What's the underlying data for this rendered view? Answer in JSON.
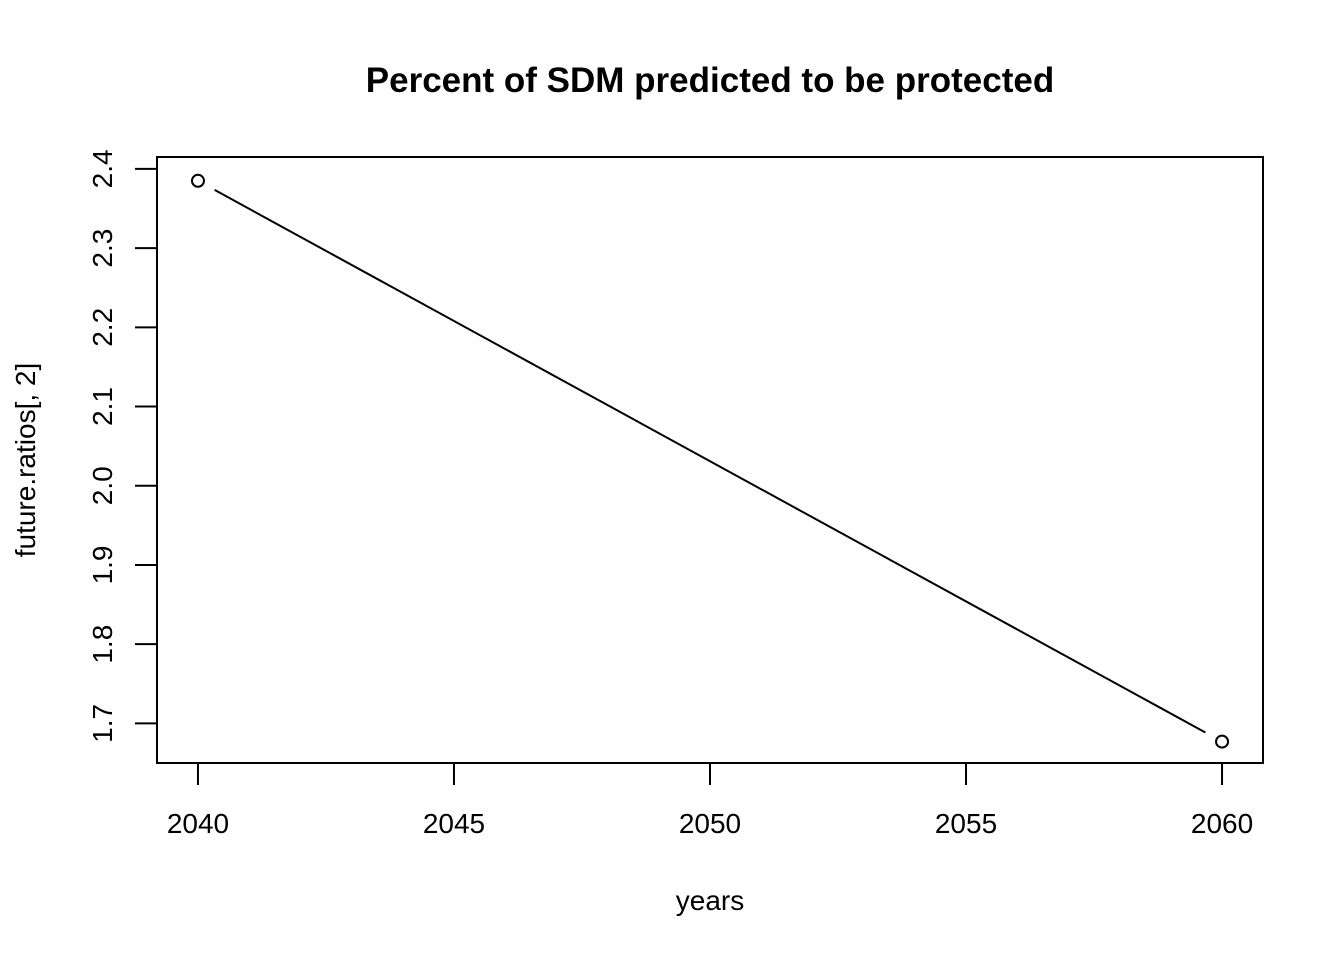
{
  "chart_data": {
    "type": "line",
    "title": "Percent of SDM predicted to be protected",
    "xlabel": "years",
    "ylabel": "future.ratios[, 2]",
    "x": [
      2040,
      2060
    ],
    "series": [
      {
        "values": [
          2.385,
          1.677
        ]
      }
    ],
    "xlim": [
      2039.2,
      2060.8
    ],
    "ylim": [
      1.65,
      2.415
    ],
    "xticks": [
      2040,
      2045,
      2050,
      2055,
      2060
    ],
    "xtick_labels": [
      "2040",
      "2045",
      "2050",
      "2055",
      "2060"
    ],
    "yticks": [
      1.7,
      1.8,
      1.9,
      2.0,
      2.1,
      2.2,
      2.3,
      2.4
    ],
    "ytick_labels": [
      "1.7",
      "1.8",
      "1.9",
      "2.0",
      "2.1",
      "2.2",
      "2.3",
      "2.4"
    ],
    "marker": "open-circle",
    "line_style": "segments-with-gaps",
    "grid": false,
    "box": true,
    "line_color": "#000000",
    "background_color": "#ffffff"
  }
}
